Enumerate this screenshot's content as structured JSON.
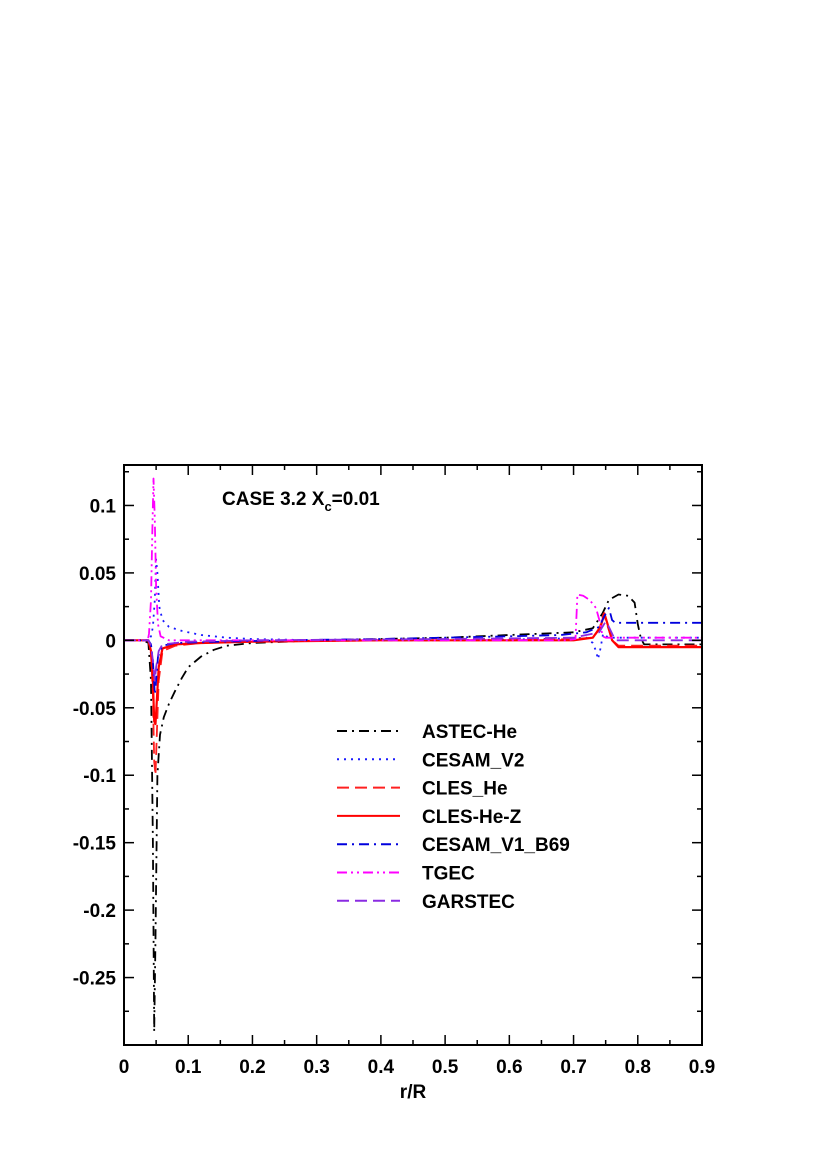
{
  "chart_data": {
    "type": "line",
    "title": "CASE 3.2 X",
    "title_subscript": "c",
    "title_suffix": "=0.01",
    "xlabel": "r/R",
    "ylabel": "",
    "xlim": [
      0,
      0.9
    ],
    "ylim": [
      -0.3,
      0.13
    ],
    "x_ticks": [
      0,
      0.1,
      0.2,
      0.3,
      0.4,
      0.5,
      0.6,
      0.7,
      0.8,
      0.9
    ],
    "x_tick_labels": [
      "0",
      "0.1",
      "0.2",
      "0.3",
      "0.4",
      "0.5",
      "0.6",
      "0.7",
      "0.8",
      "0.9"
    ],
    "y_ticks": [
      -0.25,
      -0.2,
      -0.15,
      -0.1,
      -0.05,
      0,
      0.05,
      0.1
    ],
    "y_tick_labels": [
      "-0.25",
      "-0.2",
      "-0.15",
      "-0.1",
      "-0.05",
      "0",
      "0.05",
      "0.1"
    ],
    "grid": false,
    "legend_position": "center-right",
    "series": [
      {
        "name": "ASTEC-He",
        "color": "#000000",
        "dash": "dashdot",
        "points": [
          [
            0,
            0
          ],
          [
            0.03,
            0
          ],
          [
            0.038,
            -0.002
          ],
          [
            0.042,
            -0.03
          ],
          [
            0.045,
            -0.15
          ],
          [
            0.047,
            -0.29
          ],
          [
            0.049,
            -0.22
          ],
          [
            0.052,
            -0.1
          ],
          [
            0.056,
            -0.07
          ],
          [
            0.062,
            -0.057
          ],
          [
            0.07,
            -0.047
          ],
          [
            0.08,
            -0.037
          ],
          [
            0.09,
            -0.028
          ],
          [
            0.1,
            -0.02
          ],
          [
            0.12,
            -0.012
          ],
          [
            0.14,
            -0.007
          ],
          [
            0.16,
            -0.004
          ],
          [
            0.2,
            -0.002
          ],
          [
            0.25,
            -0.001
          ],
          [
            0.3,
            0
          ],
          [
            0.4,
            0.001
          ],
          [
            0.5,
            0.002
          ],
          [
            0.6,
            0.004
          ],
          [
            0.7,
            0.006
          ],
          [
            0.73,
            0.009
          ],
          [
            0.745,
            0.02
          ],
          [
            0.755,
            0.03
          ],
          [
            0.77,
            0.034
          ],
          [
            0.785,
            0.033
          ],
          [
            0.795,
            0.028
          ],
          [
            0.8,
            0.012
          ],
          [
            0.805,
            0.001
          ],
          [
            0.81,
            -0.003
          ],
          [
            0.9,
            -0.003
          ]
        ]
      },
      {
        "name": "CESAM_V2",
        "color": "#1a1aff",
        "dash": "dotted",
        "points": [
          [
            0,
            0
          ],
          [
            0.038,
            0
          ],
          [
            0.042,
            0.003
          ],
          [
            0.045,
            0.01
          ],
          [
            0.048,
            0.03
          ],
          [
            0.05,
            0.06
          ],
          [
            0.052,
            0.05
          ],
          [
            0.055,
            0.025
          ],
          [
            0.06,
            0.015
          ],
          [
            0.07,
            0.01
          ],
          [
            0.09,
            0.007
          ],
          [
            0.12,
            0.004
          ],
          [
            0.16,
            0.002
          ],
          [
            0.2,
            0.001
          ],
          [
            0.3,
            0
          ],
          [
            0.5,
            0
          ],
          [
            0.65,
            0.001
          ],
          [
            0.72,
            0.002
          ],
          [
            0.73,
            -0.002
          ],
          [
            0.735,
            -0.008
          ],
          [
            0.738,
            -0.014
          ],
          [
            0.742,
            -0.006
          ],
          [
            0.746,
            0.005
          ],
          [
            0.75,
            0.003
          ],
          [
            0.76,
            0.002
          ],
          [
            0.9,
            0.002
          ]
        ]
      },
      {
        "name": "CLES_He",
        "color": "#ff2020",
        "dash": "dashed",
        "points": [
          [
            0,
            0
          ],
          [
            0.038,
            0
          ],
          [
            0.042,
            -0.01
          ],
          [
            0.045,
            -0.04
          ],
          [
            0.047,
            -0.09
          ],
          [
            0.049,
            -0.1
          ],
          [
            0.051,
            -0.07
          ],
          [
            0.054,
            -0.03
          ],
          [
            0.06,
            -0.008
          ],
          [
            0.08,
            -0.004
          ],
          [
            0.12,
            -0.002
          ],
          [
            0.2,
            -0.001
          ],
          [
            0.4,
            0
          ],
          [
            0.6,
            0
          ],
          [
            0.7,
            0.001
          ],
          [
            0.73,
            0.002
          ],
          [
            0.74,
            0.008
          ],
          [
            0.747,
            0.02
          ],
          [
            0.752,
            0.012
          ],
          [
            0.76,
            0
          ],
          [
            0.77,
            -0.004
          ],
          [
            0.9,
            -0.004
          ]
        ]
      },
      {
        "name": "CLES-He-Z",
        "color": "#ff0000",
        "dash": "solid",
        "points": [
          [
            0,
            0
          ],
          [
            0.038,
            0
          ],
          [
            0.042,
            -0.008
          ],
          [
            0.045,
            -0.03
          ],
          [
            0.047,
            -0.06
          ],
          [
            0.049,
            -0.062
          ],
          [
            0.051,
            -0.045
          ],
          [
            0.054,
            -0.02
          ],
          [
            0.06,
            -0.006
          ],
          [
            0.08,
            -0.003
          ],
          [
            0.12,
            -0.002
          ],
          [
            0.2,
            -0.001
          ],
          [
            0.4,
            0
          ],
          [
            0.6,
            0
          ],
          [
            0.7,
            0
          ],
          [
            0.73,
            0.002
          ],
          [
            0.742,
            0.01
          ],
          [
            0.748,
            0.02
          ],
          [
            0.753,
            0.012
          ],
          [
            0.76,
            0
          ],
          [
            0.77,
            -0.005
          ],
          [
            0.9,
            -0.005
          ]
        ]
      },
      {
        "name": "CESAM_V1_B69",
        "color": "#0000dd",
        "dash": "dashdot",
        "points": [
          [
            0,
            0
          ],
          [
            0.038,
            0
          ],
          [
            0.042,
            -0.003
          ],
          [
            0.045,
            -0.015
          ],
          [
            0.048,
            -0.04
          ],
          [
            0.05,
            -0.03
          ],
          [
            0.053,
            -0.012
          ],
          [
            0.06,
            -0.004
          ],
          [
            0.08,
            -0.002
          ],
          [
            0.15,
            -0.001
          ],
          [
            0.25,
            0
          ],
          [
            0.4,
            0.001
          ],
          [
            0.5,
            0.002
          ],
          [
            0.6,
            0.003
          ],
          [
            0.68,
            0.004
          ],
          [
            0.72,
            0.006
          ],
          [
            0.74,
            0.01
          ],
          [
            0.748,
            0.018
          ],
          [
            0.755,
            0.024
          ],
          [
            0.76,
            0.015
          ],
          [
            0.765,
            0.013
          ],
          [
            0.9,
            0.013
          ]
        ]
      },
      {
        "name": "TGEC",
        "color": "#ff00ff",
        "dash": "dashdotdot",
        "points": [
          [
            0,
            0
          ],
          [
            0.037,
            0
          ],
          [
            0.039,
            0.005
          ],
          [
            0.042,
            0.03
          ],
          [
            0.044,
            0.08
          ],
          [
            0.046,
            0.12
          ],
          [
            0.048,
            0.09
          ],
          [
            0.05,
            0.04
          ],
          [
            0.053,
            0.012
          ],
          [
            0.057,
            0.003
          ],
          [
            0.07,
            0
          ],
          [
            0.6,
            0
          ],
          [
            0.69,
            0
          ],
          [
            0.703,
            0.001
          ],
          [
            0.706,
            0.034
          ],
          [
            0.715,
            0.033
          ],
          [
            0.725,
            0.03
          ],
          [
            0.735,
            0.024
          ],
          [
            0.742,
            0.012
          ],
          [
            0.745,
            0.003
          ],
          [
            0.75,
            0.002
          ],
          [
            0.9,
            0.002
          ]
        ]
      },
      {
        "name": "GARSTEC",
        "color": "#8a2be2",
        "dash": "dashed",
        "points": [
          [
            0,
            0
          ],
          [
            0.038,
            0
          ],
          [
            0.042,
            -0.004
          ],
          [
            0.045,
            -0.015
          ],
          [
            0.048,
            -0.03
          ],
          [
            0.05,
            -0.02
          ],
          [
            0.054,
            -0.008
          ],
          [
            0.06,
            -0.003
          ],
          [
            0.1,
            -0.001
          ],
          [
            0.2,
            0
          ],
          [
            0.5,
            0.001
          ],
          [
            0.7,
            0.002
          ],
          [
            0.74,
            0.006
          ],
          [
            0.75,
            0.014
          ],
          [
            0.755,
            0.01
          ],
          [
            0.765,
            0
          ],
          [
            0.9,
            0
          ]
        ]
      }
    ]
  }
}
